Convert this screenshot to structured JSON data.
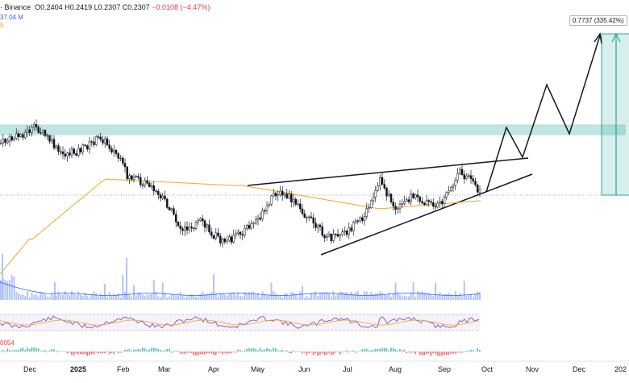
{
  "header": {
    "symbol_exchange": "· Binance",
    "open_label": "O",
    "open": "0.2404",
    "high_label": "H",
    "high": "0.2419",
    "low_label": "L",
    "low": "0.2307",
    "close_label": "C",
    "close": "0.2307",
    "change": "−0.0108 (−4.47%)",
    "volume_partial": "37.04 M",
    "dot_label": "5"
  },
  "target_label": "0.7737 (335.42%)",
  "macd_label": "0054",
  "x_axis": {
    "labels": [
      "Dec",
      "2025",
      "Feb",
      "Mar",
      "Apr",
      "May",
      "Jun",
      "Jul",
      "Aug",
      "Sep",
      "Oct",
      "Nov",
      "Dec",
      "202"
    ]
  },
  "colors": {
    "up": "#089981",
    "down": "#f23645",
    "candle": "#131722",
    "ma": "#f5a623",
    "zone": "#26a69a",
    "volume": "#2962ff",
    "rsi": "#7e57c2",
    "pattern": "#131722"
  },
  "chart_data": {
    "type": "candlestick",
    "symbol_exchange": "Binance",
    "xlabels": [
      "Dec",
      "2025",
      "Feb",
      "Mar",
      "Apr",
      "May",
      "Jun",
      "Jul",
      "Aug",
      "Sep",
      "Oct",
      "Nov",
      "Dec",
      "202"
    ],
    "price_path": {
      "months": [
        "Nov",
        "Dec",
        "2025",
        "Feb",
        "Mar",
        "Apr",
        "May",
        "Jun",
        "Jul",
        "Aug",
        "Sep"
      ],
      "approx_close": [
        0.4,
        0.42,
        0.39,
        0.35,
        0.27,
        0.21,
        0.3,
        0.25,
        0.33,
        0.27,
        0.25
      ]
    },
    "last": {
      "open": 0.2404,
      "high": 0.2419,
      "low": 0.2307,
      "close": 0.2307,
      "change": -0.0108,
      "change_pct": -4.47
    },
    "projection_target": {
      "price": 0.7737,
      "pct": 335.42
    },
    "annotations": [
      "rising wedge",
      "resistance zone",
      "projected zig-zag breakout path",
      "long position target box"
    ],
    "indicators": [
      "moving average",
      "volume",
      "RSI",
      "MACD"
    ]
  }
}
